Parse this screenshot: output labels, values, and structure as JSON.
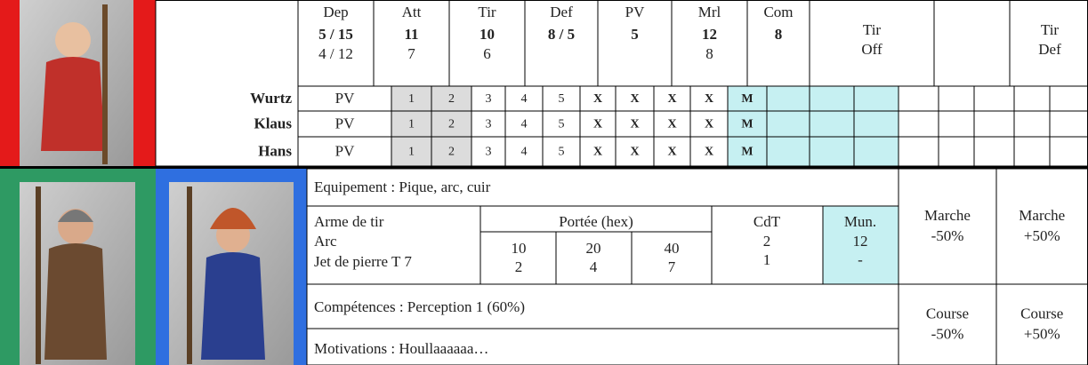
{
  "stats": [
    {
      "label": "Dep",
      "value": "5 / 15",
      "base": "4 / 12"
    },
    {
      "label": "Att",
      "value": "11",
      "base": "7"
    },
    {
      "label": "Tir",
      "value": "10",
      "base": "6"
    },
    {
      "label": "Def",
      "value": "8 / 5"
    },
    {
      "label": "PV",
      "value": "5"
    },
    {
      "label": "Mrl",
      "value": "12",
      "base": "8"
    },
    {
      "label": "Com",
      "value": "8"
    }
  ],
  "tir_off": [
    "Tir",
    "Off"
  ],
  "tir_def": [
    "Tir",
    "Def"
  ],
  "soldiers": [
    {
      "name": "Wurtz",
      "cells": [
        "PV",
        "1",
        "2",
        "3",
        "4",
        "5",
        "X",
        "X",
        "X",
        "X",
        "M"
      ]
    },
    {
      "name": "Klaus",
      "cells": [
        "PV",
        "1",
        "2",
        "3",
        "4",
        "5",
        "X",
        "X",
        "X",
        "X",
        "M"
      ]
    },
    {
      "name": "Hans",
      "cells": [
        "PV",
        "1",
        "2",
        "3",
        "4",
        "5",
        "X",
        "X",
        "X",
        "X",
        "M"
      ]
    }
  ],
  "equipment": "Equipement : Pique, arc, cuir",
  "weapons": {
    "headers": [
      "Arme de tir",
      "Portée (hex)",
      "CdT",
      "Mun."
    ],
    "rows": [
      {
        "name": "Arc",
        "ranges": [
          "10",
          "20",
          "40"
        ],
        "cdt": "2",
        "mun": "12"
      },
      {
        "name": "Jet de pierre T 7",
        "ranges": [
          "2",
          "4",
          "7"
        ],
        "cdt": "1",
        "mun": "-"
      }
    ]
  },
  "skills": "Compétences : Perception 1 (60%)",
  "motivations": "Motivations : Houllaaaaaa…",
  "movement": [
    [
      "Marche",
      "-50%"
    ],
    [
      "Marche",
      "+50%"
    ],
    [
      "Course",
      "-50%"
    ],
    [
      "Course",
      "+50%"
    ]
  ]
}
